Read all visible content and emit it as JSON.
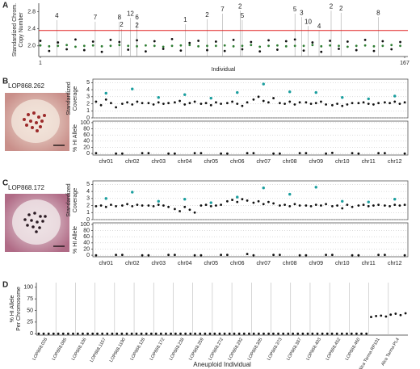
{
  "chart_data": [
    {
      "type": "scatter",
      "panel": "A",
      "ylabel": [
        "Standardized Chrom.",
        "Copy Number"
      ],
      "xlabel": "Individual",
      "x": [
        1,
        5,
        9,
        13,
        17,
        21,
        25,
        29,
        33,
        37,
        41,
        45,
        49,
        53,
        57,
        61,
        65,
        69,
        73,
        77,
        81,
        85,
        89,
        93,
        97,
        101,
        105,
        109,
        113,
        117,
        121,
        125,
        129,
        133,
        137,
        141,
        145,
        149,
        153,
        157,
        161,
        165
      ],
      "series": [
        {
          "color": "#2e7d32",
          "values": [
            2.01,
            1.99,
            2.0,
            2.02,
            1.98,
            2.0,
            2.01,
            1.99,
            2.0,
            2.02,
            2.0,
            1.99,
            2.01,
            2.0,
            1.98,
            2.0,
            2.01,
            2.02,
            1.99,
            2.0,
            2.0,
            2.01,
            1.99,
            2.0,
            2.02,
            1.98,
            2.0,
            2.01,
            1.99,
            2.0,
            2.0,
            2.02,
            1.99,
            2.01,
            2.0,
            1.98,
            2.0,
            2.01,
            1.99,
            2.0,
            2.02,
            2.0
          ]
        },
        {
          "color": "#111111",
          "values": [
            2.12,
            1.88,
            2.08,
            1.92,
            2.15,
            1.9,
            2.1,
            1.86,
            2.14,
            2.09,
            1.91,
            2.13,
            1.87,
            2.11,
            1.93,
            2.16,
            1.89,
            2.07,
            2.12,
            1.9,
            2.1,
            1.88,
            2.14,
            1.92,
            2.09,
            1.87,
            2.13,
            1.91,
            2.11,
            2.15,
            1.89,
            2.08,
            1.86,
            2.12,
            1.93,
            2.1,
            1.9,
            2.14,
            1.88,
            2.11,
            1.92,
            2.09
          ]
        }
      ],
      "xlim": [
        1,
        167
      ],
      "xticks": [
        1,
        167
      ],
      "ylim": [
        1.75,
        3.0
      ],
      "yticks": [
        {
          "value": 2,
          "label": "2.0"
        },
        2.4,
        2.8
      ],
      "threshold": 2.36,
      "threshold_color": "#e02020",
      "annotations": [
        {
          "x": 8.5,
          "y": 2.7,
          "label": "4"
        },
        {
          "x": 26,
          "y": 2.66,
          "label": "7"
        },
        {
          "x": 37,
          "y": 2.66,
          "label": "8"
        },
        {
          "x": 38,
          "y": 2.49,
          "label": "2"
        },
        {
          "x": 42,
          "y": 2.75,
          "label": "12"
        },
        {
          "x": 45,
          "y": 2.66,
          "label": "6"
        },
        {
          "x": 45,
          "y": 2.47,
          "label": "2"
        },
        {
          "x": 67,
          "y": 2.6,
          "label": "1"
        },
        {
          "x": 77,
          "y": 2.72,
          "label": "2"
        },
        {
          "x": 84,
          "y": 2.85,
          "label": "7"
        },
        {
          "x": 92,
          "y": 2.92,
          "label": "2"
        },
        {
          "x": 93,
          "y": 2.7,
          "label": "5"
        },
        {
          "x": 117,
          "y": 2.85,
          "label": "5"
        },
        {
          "x": 120,
          "y": 2.77,
          "label": "3"
        },
        {
          "x": 123,
          "y": 2.56,
          "label": "10"
        },
        {
          "x": 128,
          "y": 2.45,
          "label": "4"
        },
        {
          "x": 133.5,
          "y": 2.92,
          "label": "2"
        },
        {
          "x": 138,
          "y": 2.87,
          "label": "2"
        },
        {
          "x": 155,
          "y": 2.77,
          "label": "8"
        }
      ]
    },
    {
      "type": "strip",
      "panel": "B",
      "sample": "LOP868.262",
      "ylabel": [
        "Standardized",
        "Coverage"
      ],
      "grid": true,
      "ylim": [
        0,
        5.5
      ],
      "yticks": [
        0,
        1,
        2,
        3,
        4,
        5
      ],
      "series": [
        {
          "color": "#111111",
          "values": [
            [
              2.3,
              1.8,
              2.6,
              2.1,
              1.5
            ],
            [
              2.0,
              2.2,
              1.9,
              2.3,
              2.1
            ],
            [
              2.1,
              1.9,
              2.2,
              2.0,
              2.1
            ],
            [
              2.2,
              2.4,
              1.9,
              2.1,
              2.3
            ],
            [
              2.0,
              2.1,
              1.8,
              2.2,
              2.0
            ],
            [
              2.1,
              2.3,
              2.0,
              1.7,
              2.2
            ],
            [
              2.6,
              3.0,
              2.4,
              2.2,
              2.8
            ],
            [
              2.1,
              2.0,
              2.3,
              1.9,
              2.2
            ],
            [
              2.2,
              2.0,
              2.1,
              2.3,
              1.9
            ],
            [
              1.8,
              2.0,
              1.7,
              1.9,
              2.1
            ],
            [
              2.1,
              2.2,
              2.0,
              1.9,
              2.1
            ],
            [
              2.2,
              2.1,
              2.3,
              2.0,
              2.2
            ]
          ]
        },
        {
          "color": "#1a9e9e",
          "values": [
            [
              3.5
            ],
            [
              4.1
            ],
            [
              2.9
            ],
            [
              3.3
            ],
            [
              2.8
            ],
            [
              3.6
            ],
            [
              4.8
            ],
            [
              3.7
            ],
            [
              3.6
            ],
            [
              2.9
            ],
            [
              2.7
            ],
            [
              3.1
            ]
          ]
        }
      ]
    },
    {
      "type": "strip",
      "ylabel": [
        "% HI Allele"
      ],
      "grid": true,
      "categories": [
        "chr01",
        "chr02",
        "chr03",
        "chr04",
        "chr05",
        "chr06",
        "chr07",
        "chr08",
        "chr09",
        "chr10",
        "chr11",
        "chr12"
      ],
      "ylim": [
        -5,
        105
      ],
      "yticks": [
        0,
        20,
        40,
        60,
        80,
        100
      ],
      "series": [
        {
          "color": "#111111",
          "values": [
            [
              1,
              0
            ],
            [
              0,
              1
            ],
            [
              1,
              0
            ],
            [
              0,
              1
            ],
            [
              1,
              0
            ],
            [
              0,
              1
            ],
            [
              1,
              0
            ],
            [
              0,
              1
            ],
            [
              1,
              0
            ],
            [
              2,
              1
            ],
            [
              0,
              1
            ],
            [
              1,
              0
            ]
          ]
        }
      ]
    },
    {
      "type": "strip",
      "panel": "C",
      "sample": "LOP868.172",
      "ylabel": [
        "Standardized",
        "Coverage"
      ],
      "grid": true,
      "ylim": [
        0,
        5.5
      ],
      "yticks": [
        0,
        1,
        2,
        3,
        4,
        5
      ],
      "series": [
        {
          "color": "#111111",
          "values": [
            [
              1.9,
              2.0,
              1.8,
              2.1,
              1.9
            ],
            [
              2.0,
              2.2,
              1.9,
              2.1,
              2.0
            ],
            [
              2.0,
              1.9,
              2.1,
              2.0,
              1.8
            ],
            [
              1.5,
              1.2,
              1.8,
              1.4,
              1.0
            ],
            [
              2.0,
              2.1,
              1.9,
              2.0,
              2.1
            ],
            [
              2.6,
              2.8,
              2.5,
              2.9,
              2.7
            ],
            [
              2.4,
              2.6,
              2.2,
              2.5,
              2.3
            ],
            [
              2.0,
              2.1,
              1.9,
              2.2,
              2.0
            ],
            [
              2.0,
              1.9,
              2.1,
              2.0,
              2.2
            ],
            [
              1.9,
              2.0,
              1.6,
              2.1,
              1.8
            ],
            [
              2.0,
              2.1,
              1.9,
              2.0,
              2.1
            ],
            [
              2.0,
              1.9,
              2.1,
              2.0,
              2.1
            ]
          ]
        },
        {
          "color": "#1a9e9e",
          "values": [
            [
              3.0
            ],
            [
              3.9
            ],
            [
              2.6
            ],
            [
              2.9
            ],
            [
              2.4
            ],
            [
              3.2
            ],
            [
              4.5
            ],
            [
              3.6
            ],
            [
              4.6
            ],
            [
              2.6
            ],
            [
              2.5
            ],
            [
              2.9
            ]
          ]
        }
      ]
    },
    {
      "type": "strip",
      "ylabel": [
        "% HI Allele"
      ],
      "grid": true,
      "categories": [
        "chr01",
        "chr02",
        "chr03",
        "chr04",
        "chr05",
        "chr06",
        "chr07",
        "chr08",
        "chr09",
        "chr10",
        "chr11",
        "chr12"
      ],
      "ylim": [
        -5,
        105
      ],
      "yticks": [
        0,
        20,
        40,
        60,
        80,
        100
      ],
      "series": [
        {
          "color": "#111111",
          "values": [
            [
              0,
              1
            ],
            [
              1,
              0
            ],
            [
              0,
              1
            ],
            [
              1,
              0
            ],
            [
              0,
              1
            ],
            [
              1,
              4
            ],
            [
              0,
              1
            ],
            [
              1,
              0
            ],
            [
              0,
              1
            ],
            [
              1,
              0
            ],
            [
              0,
              1
            ],
            [
              1,
              0
            ]
          ]
        }
      ]
    },
    {
      "type": "strip",
      "panel": "D",
      "ylabel": [
        "% HI Allele",
        "Per Chromosome"
      ],
      "xlabel": "Aneuploid Individual",
      "separators": true,
      "categories": [
        "LOP868.028",
        "LOP868.085",
        "LOP868.106",
        "LOP868.1157",
        "LOP868.1190",
        "LOP868.128",
        "LOP868.172",
        "LOP868.238",
        "LOP868.259",
        "LOP868.272",
        "LOP868.292",
        "LOP868.305",
        "LOP868.373",
        "LOP868.387",
        "LOP868.403",
        "LOP868.452",
        "LOP868.460",
        "Alca Tarma RP101",
        "Alca Tarma PL4"
      ],
      "ylim": [
        -3,
        110
      ],
      "yticks": [
        0,
        25,
        50,
        75,
        100
      ],
      "series": [
        {
          "color": "#111111",
          "values": [
            [
              0,
              0,
              0,
              0
            ],
            [
              0,
              0,
              0,
              0
            ],
            [
              0,
              0,
              0,
              0
            ],
            [
              0,
              0,
              0,
              0
            ],
            [
              0,
              0,
              0,
              0
            ],
            [
              0,
              0,
              0,
              0
            ],
            [
              0,
              0,
              0,
              0
            ],
            [
              0,
              0,
              0,
              0
            ],
            [
              0,
              0,
              0,
              0
            ],
            [
              0,
              0,
              0,
              0
            ],
            [
              0,
              0,
              0,
              0
            ],
            [
              0,
              0,
              0,
              0
            ],
            [
              0,
              0,
              0,
              0
            ],
            [
              0,
              0,
              0,
              0
            ],
            [
              0,
              0,
              0,
              0
            ],
            [
              0,
              0,
              0,
              0
            ],
            [
              0,
              0,
              0,
              0
            ],
            [
              36,
              38,
              39,
              37
            ],
            [
              41,
              43,
              40,
              44
            ]
          ]
        }
      ]
    }
  ]
}
